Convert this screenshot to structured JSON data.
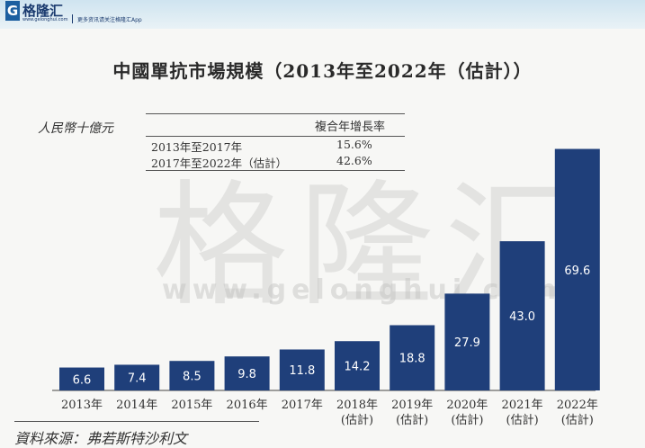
{
  "brand": {
    "logo_letter": "G",
    "name": "格隆汇",
    "url": "www.gelonghui.com",
    "tagline": "更多资讯请关注格隆汇App"
  },
  "watermark": {
    "text": "格隆汇",
    "url": "www.gelonghui.com"
  },
  "cagr_table": {
    "header": "複合年增長率",
    "rows": [
      {
        "label": "2013年至2017年",
        "value": "15.6%"
      },
      {
        "label": "2017年至2022年（估計）",
        "value": "42.6%"
      }
    ]
  },
  "source": "資料來源：弗若斯特沙利文",
  "colors": {
    "bar": "#1f3f7a",
    "label": "#ffffff",
    "axis": "#444444"
  },
  "chart_data": {
    "type": "bar",
    "title": "中國單抗市場規模（2013年至2022年（估計））",
    "ylabel": "人民幣十億元",
    "categories": [
      "2013年",
      "2014年",
      "2015年",
      "2016年",
      "2017年",
      "2018年\n(估計)",
      "2019年\n(估計)",
      "2020年\n(估計)",
      "2021年\n(估計)",
      "2022年\n(估計)"
    ],
    "tick_labels": [
      {
        "line1": "2013年",
        "line2": ""
      },
      {
        "line1": "2014年",
        "line2": ""
      },
      {
        "line1": "2015年",
        "line2": ""
      },
      {
        "line1": "2016年",
        "line2": ""
      },
      {
        "line1": "2017年",
        "line2": ""
      },
      {
        "line1": "2018年",
        "line2": "(估計)"
      },
      {
        "line1": "2019年",
        "line2": "(估計)"
      },
      {
        "line1": "2020年",
        "line2": "(估計)"
      },
      {
        "line1": "2021年",
        "line2": "(估計)"
      },
      {
        "line1": "2022年",
        "line2": "(估計)"
      }
    ],
    "values": [
      6.6,
      7.4,
      8.5,
      9.8,
      11.8,
      14.2,
      18.8,
      27.9,
      43.0,
      69.6
    ],
    "value_labels": [
      "6.6",
      "7.4",
      "8.5",
      "9.8",
      "11.8",
      "14.2",
      "18.8",
      "27.9",
      "43.0",
      "69.6"
    ],
    "ylim": [
      0,
      70
    ],
    "grid": false,
    "legend": "none"
  }
}
